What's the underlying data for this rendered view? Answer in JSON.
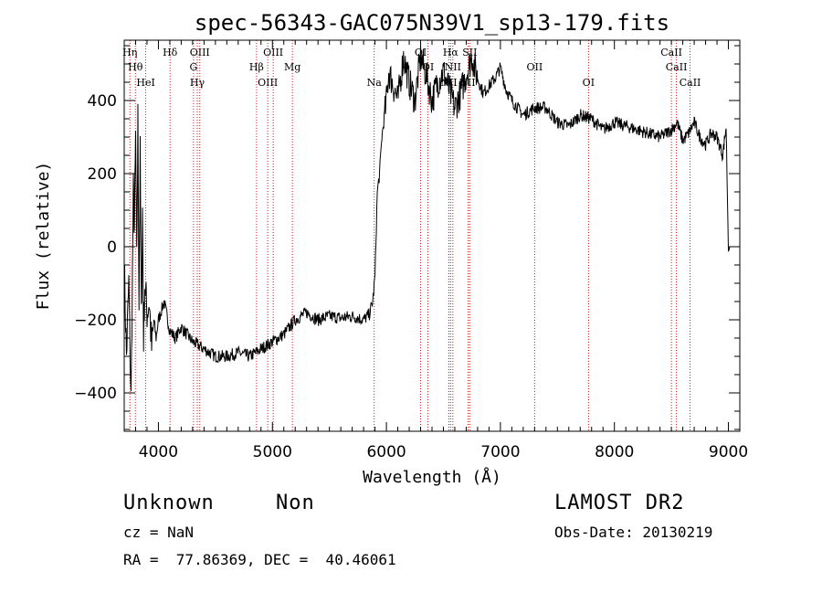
{
  "chart_data": {
    "type": "line",
    "title": "spec-56343-GAC075N39V1_sp13-179.fits",
    "xlabel": "Wavelength (Å)",
    "ylabel": "Flux (relative)",
    "xlim": [
      3700,
      9100
    ],
    "ylim": [
      -505,
      565
    ],
    "x_ticks": [
      4000,
      5000,
      6000,
      7000,
      8000,
      9000
    ],
    "y_ticks": [
      -400,
      -200,
      0,
      200,
      400
    ],
    "series": [
      {
        "name": "flux",
        "x": [
          3700,
          3720,
          3740,
          3760,
          3780,
          3790,
          3800,
          3810,
          3820,
          3830,
          3840,
          3850,
          3860,
          3870,
          3880,
          3900,
          3920,
          3940,
          3960,
          3980,
          4000,
          4050,
          4100,
          4150,
          4200,
          4250,
          4300,
          4350,
          4400,
          4500,
          4600,
          4700,
          4800,
          4900,
          5000,
          5100,
          5200,
          5300,
          5400,
          5500,
          5600,
          5700,
          5800,
          5850,
          5880,
          5900,
          5920,
          5940,
          5960,
          5980,
          6000,
          6020,
          6050,
          6100,
          6150,
          6200,
          6250,
          6300,
          6350,
          6400,
          6450,
          6500,
          6550,
          6600,
          6650,
          6700,
          6750,
          6800,
          6850,
          6900,
          6950,
          7000,
          7050,
          7100,
          7150,
          7200,
          7300,
          7400,
          7500,
          7600,
          7700,
          7800,
          7900,
          8000,
          8100,
          8200,
          8300,
          8400,
          8500,
          8550,
          8600,
          8650,
          8700,
          8750,
          8800,
          8850,
          8900,
          8950,
          8980,
          9000,
          9010
        ],
        "y": [
          -50,
          -300,
          -100,
          -420,
          150,
          50,
          300,
          -50,
          350,
          -150,
          250,
          -200,
          100,
          -250,
          -100,
          -180,
          -150,
          -280,
          -200,
          -250,
          -200,
          -150,
          -230,
          -250,
          -220,
          -240,
          -260,
          -270,
          -280,
          -300,
          -300,
          -290,
          -300,
          -280,
          -260,
          -240,
          -200,
          -180,
          -200,
          -190,
          -195,
          -190,
          -200,
          -185,
          -150,
          -80,
          150,
          200,
          300,
          350,
          400,
          480,
          450,
          400,
          520,
          450,
          400,
          520,
          470,
          400,
          450,
          480,
          430,
          380,
          420,
          470,
          520,
          460,
          420,
          440,
          460,
          490,
          430,
          400,
          380,
          360,
          380,
          380,
          340,
          330,
          360,
          350,
          320,
          340,
          330,
          320,
          310,
          300,
          320,
          340,
          290,
          310,
          340,
          300,
          280,
          310,
          300,
          250,
          330,
          0,
          0
        ]
      }
    ],
    "lines": [
      {
        "x": 3750,
        "label": "Hη"
      },
      {
        "x": 3798,
        "label": "Hθ"
      },
      {
        "x": 3889,
        "label": "HeI"
      },
      {
        "x": 4102,
        "label": "Hδ"
      },
      {
        "x": 4308,
        "label": "G"
      },
      {
        "x": 4341,
        "label": "Hγ"
      },
      {
        "x": 4363,
        "label": "OIII"
      },
      {
        "x": 4861,
        "label": "Hβ"
      },
      {
        "x": 4959,
        "label": "OIII"
      },
      {
        "x": 5007,
        "label": "OIII"
      },
      {
        "x": 5175,
        "label": "Mg"
      },
      {
        "x": 5893,
        "label": "Na"
      },
      {
        "x": 6300,
        "label": "OI"
      },
      {
        "x": 6364,
        "label": "OI"
      },
      {
        "x": 6548,
        "label": "NII"
      },
      {
        "x": 6563,
        "label": "Hα"
      },
      {
        "x": 6583,
        "label": "NII"
      },
      {
        "x": 6716,
        "label": "SII"
      },
      {
        "x": 6731,
        "label": "SII"
      },
      {
        "x": 7300,
        "label": "OII"
      },
      {
        "x": 7773,
        "label": "OI"
      },
      {
        "x": 8500,
        "label": "CaII"
      },
      {
        "x": 8544,
        "label": "CaII"
      },
      {
        "x": 8664,
        "label": "CaII"
      }
    ]
  },
  "info": {
    "class_label": "Unknown",
    "subclass_label": "Non",
    "survey_label": "LAMOST DR2",
    "redshift_text": "cz = NaN",
    "obs_date_text": "Obs-Date: 20130219",
    "coords_text": "RA =  77.86369, DEC =  40.46061"
  }
}
